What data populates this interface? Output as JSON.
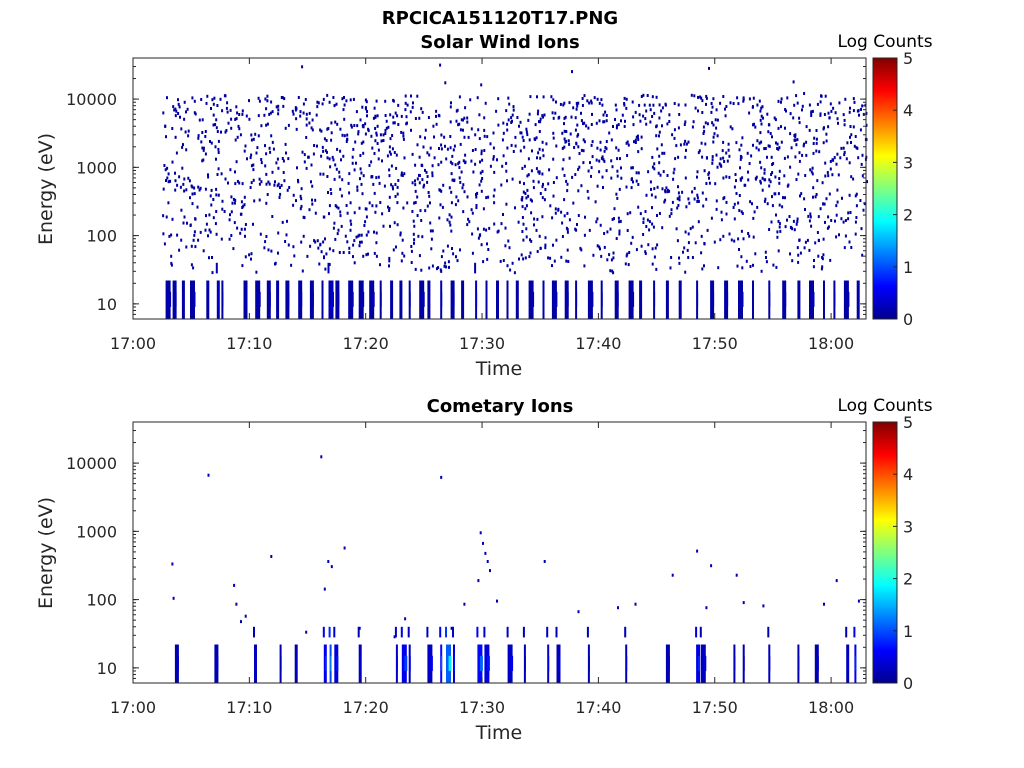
{
  "figure_title": "RPCICA151120T17.PNG",
  "colors": {
    "background": "#ffffff",
    "axis": "#262626",
    "colormap": [
      "#00008f",
      "#0000ff",
      "#00ffff",
      "#ffff00",
      "#ff0000",
      "#800000"
    ]
  },
  "chart_data": [
    {
      "type": "heatmap",
      "title": "Solar Wind Ions",
      "xlabel": "Time",
      "ylabel": "Energy (eV)",
      "x_ticks": [
        "17:00",
        "17:10",
        "17:20",
        "17:30",
        "17:40",
        "17:50",
        "18:00"
      ],
      "y_ticks": [
        "10",
        "100",
        "1000",
        "10000"
      ],
      "xlim_minutes_after_17": [
        0,
        63
      ],
      "ylim_eV": [
        6,
        40000
      ],
      "y_scale": "log",
      "colorbar": {
        "title": "Log Counts",
        "ticks": [
          "0",
          "1",
          "2",
          "3",
          "4",
          "5"
        ],
        "range": [
          0,
          5
        ]
      },
      "data_start_minute": 2.5,
      "data_end_minute": 63,
      "sparse_energy_range_eV": [
        30,
        12000
      ],
      "sparse_log_counts": 0.1,
      "low_energy_events": [
        [
          2.8,
          0.2
        ],
        [
          3.4,
          0.2
        ],
        [
          4.2,
          0.2
        ],
        [
          4.9,
          0.2
        ],
        [
          6.3,
          0.2
        ],
        [
          7.2,
          0.4
        ],
        [
          7.6,
          0.2
        ],
        [
          9.5,
          0.2
        ],
        [
          10.5,
          0.2
        ],
        [
          11.5,
          0.2
        ],
        [
          12.3,
          0.2
        ],
        [
          13.1,
          0.2
        ],
        [
          14.2,
          0.2
        ],
        [
          15.2,
          0.2
        ],
        [
          16.2,
          0.2
        ],
        [
          16.8,
          0.4
        ],
        [
          17.4,
          0.2
        ],
        [
          18.5,
          0.2
        ],
        [
          19.4,
          0.2
        ],
        [
          20.3,
          0.2
        ],
        [
          21.2,
          0.2
        ],
        [
          22.1,
          0.2
        ],
        [
          22.9,
          0.2
        ],
        [
          23.7,
          0.2
        ],
        [
          24.6,
          0.2
        ],
        [
          25.3,
          0.2
        ],
        [
          26.4,
          0.3
        ],
        [
          27.3,
          0.2
        ],
        [
          28.2,
          0.2
        ],
        [
          29.4,
          0.4
        ],
        [
          30.3,
          0.2
        ],
        [
          31.2,
          0.2
        ],
        [
          32.1,
          0.2
        ],
        [
          32.9,
          0.2
        ],
        [
          34.0,
          0.2
        ],
        [
          35.2,
          0.3
        ],
        [
          36.0,
          0.2
        ],
        [
          37.1,
          0.2
        ],
        [
          38.0,
          0.2
        ],
        [
          39.1,
          0.2
        ],
        [
          40.2,
          0.2
        ],
        [
          41.4,
          0.2
        ],
        [
          42.6,
          0.2
        ],
        [
          43.5,
          0.2
        ],
        [
          44.7,
          0.2
        ],
        [
          45.8,
          0.2
        ],
        [
          46.9,
          0.2
        ],
        [
          48.4,
          0.3
        ],
        [
          49.6,
          0.2
        ],
        [
          50.8,
          0.2
        ],
        [
          52.0,
          0.2
        ],
        [
          53.2,
          0.2
        ],
        [
          54.6,
          0.2
        ],
        [
          55.8,
          0.2
        ],
        [
          57.1,
          0.2
        ],
        [
          58.1,
          0.2
        ],
        [
          59.3,
          0.2
        ],
        [
          60.2,
          0.2
        ],
        [
          61.1,
          0.2
        ],
        [
          62.2,
          0.2
        ]
      ]
    },
    {
      "type": "heatmap",
      "title": "Cometary Ions",
      "xlabel": "Time",
      "ylabel": "Energy (eV)",
      "x_ticks": [
        "17:00",
        "17:10",
        "17:20",
        "17:30",
        "17:40",
        "17:50",
        "18:00"
      ],
      "y_ticks": [
        "10",
        "100",
        "1000",
        "10000"
      ],
      "xlim_minutes_after_17": [
        0,
        63
      ],
      "ylim_eV": [
        6,
        40000
      ],
      "y_scale": "log",
      "colorbar": {
        "title": "Log Counts",
        "ticks": [
          "0",
          "1",
          "2",
          "3",
          "4",
          "5"
        ],
        "range": [
          0,
          5
        ]
      },
      "low_energy_events": [
        [
          3.6,
          0.3
        ],
        [
          7.0,
          0.3
        ],
        [
          10.4,
          0.4
        ],
        [
          12.6,
          0.3
        ],
        [
          13.9,
          0.3
        ],
        [
          16.4,
          0.9
        ],
        [
          16.9,
          1.6
        ],
        [
          17.3,
          0.7
        ],
        [
          19.4,
          0.4
        ],
        [
          22.6,
          0.6
        ],
        [
          23.1,
          0.9
        ],
        [
          23.7,
          0.5
        ],
        [
          25.3,
          0.5
        ],
        [
          26.4,
          1.1
        ],
        [
          26.9,
          1.8
        ],
        [
          27.5,
          0.7
        ],
        [
          29.6,
          1.1
        ],
        [
          30.2,
          0.7
        ],
        [
          32.2,
          0.5
        ],
        [
          33.6,
          0.4
        ],
        [
          35.6,
          0.5
        ],
        [
          36.4,
          0.4
        ],
        [
          39.1,
          0.4
        ],
        [
          42.3,
          0.4
        ],
        [
          45.8,
          0.3
        ],
        [
          48.4,
          0.8
        ],
        [
          48.8,
          0.4
        ],
        [
          51.6,
          0.3
        ],
        [
          52.4,
          0.3
        ],
        [
          54.6,
          0.4
        ],
        [
          57.1,
          0.3
        ],
        [
          58.6,
          0.3
        ],
        [
          61.3,
          0.4
        ],
        [
          62.0,
          0.9
        ]
      ],
      "sparse_points": [
        [
          3.3,
          350
        ],
        [
          3.4,
          110
        ],
        [
          6.4,
          7000
        ],
        [
          8.6,
          170
        ],
        [
          8.8,
          90
        ],
        [
          9.2,
          50
        ],
        [
          9.6,
          60
        ],
        [
          11.8,
          450
        ],
        [
          14.8,
          35
        ],
        [
          16.1,
          13000
        ],
        [
          16.4,
          150
        ],
        [
          16.7,
          380
        ],
        [
          17.0,
          320
        ],
        [
          18.1,
          600
        ],
        [
          19.4,
          40
        ],
        [
          22.4,
          30
        ],
        [
          23.3,
          55
        ],
        [
          26.4,
          6500
        ],
        [
          27.3,
          40
        ],
        [
          28.4,
          90
        ],
        [
          29.6,
          200
        ],
        [
          29.8,
          1000
        ],
        [
          30.0,
          700
        ],
        [
          30.2,
          500
        ],
        [
          30.4,
          380
        ],
        [
          30.6,
          280
        ],
        [
          31.2,
          100
        ],
        [
          35.3,
          380
        ],
        [
          38.2,
          70
        ],
        [
          41.6,
          80
        ],
        [
          43.1,
          90
        ],
        [
          46.3,
          240
        ],
        [
          48.4,
          540
        ],
        [
          49.2,
          80
        ],
        [
          49.6,
          330
        ],
        [
          51.8,
          240
        ],
        [
          52.4,
          95
        ],
        [
          54.1,
          85
        ],
        [
          59.3,
          90
        ],
        [
          60.4,
          200
        ],
        [
          62.3,
          100
        ]
      ]
    }
  ]
}
